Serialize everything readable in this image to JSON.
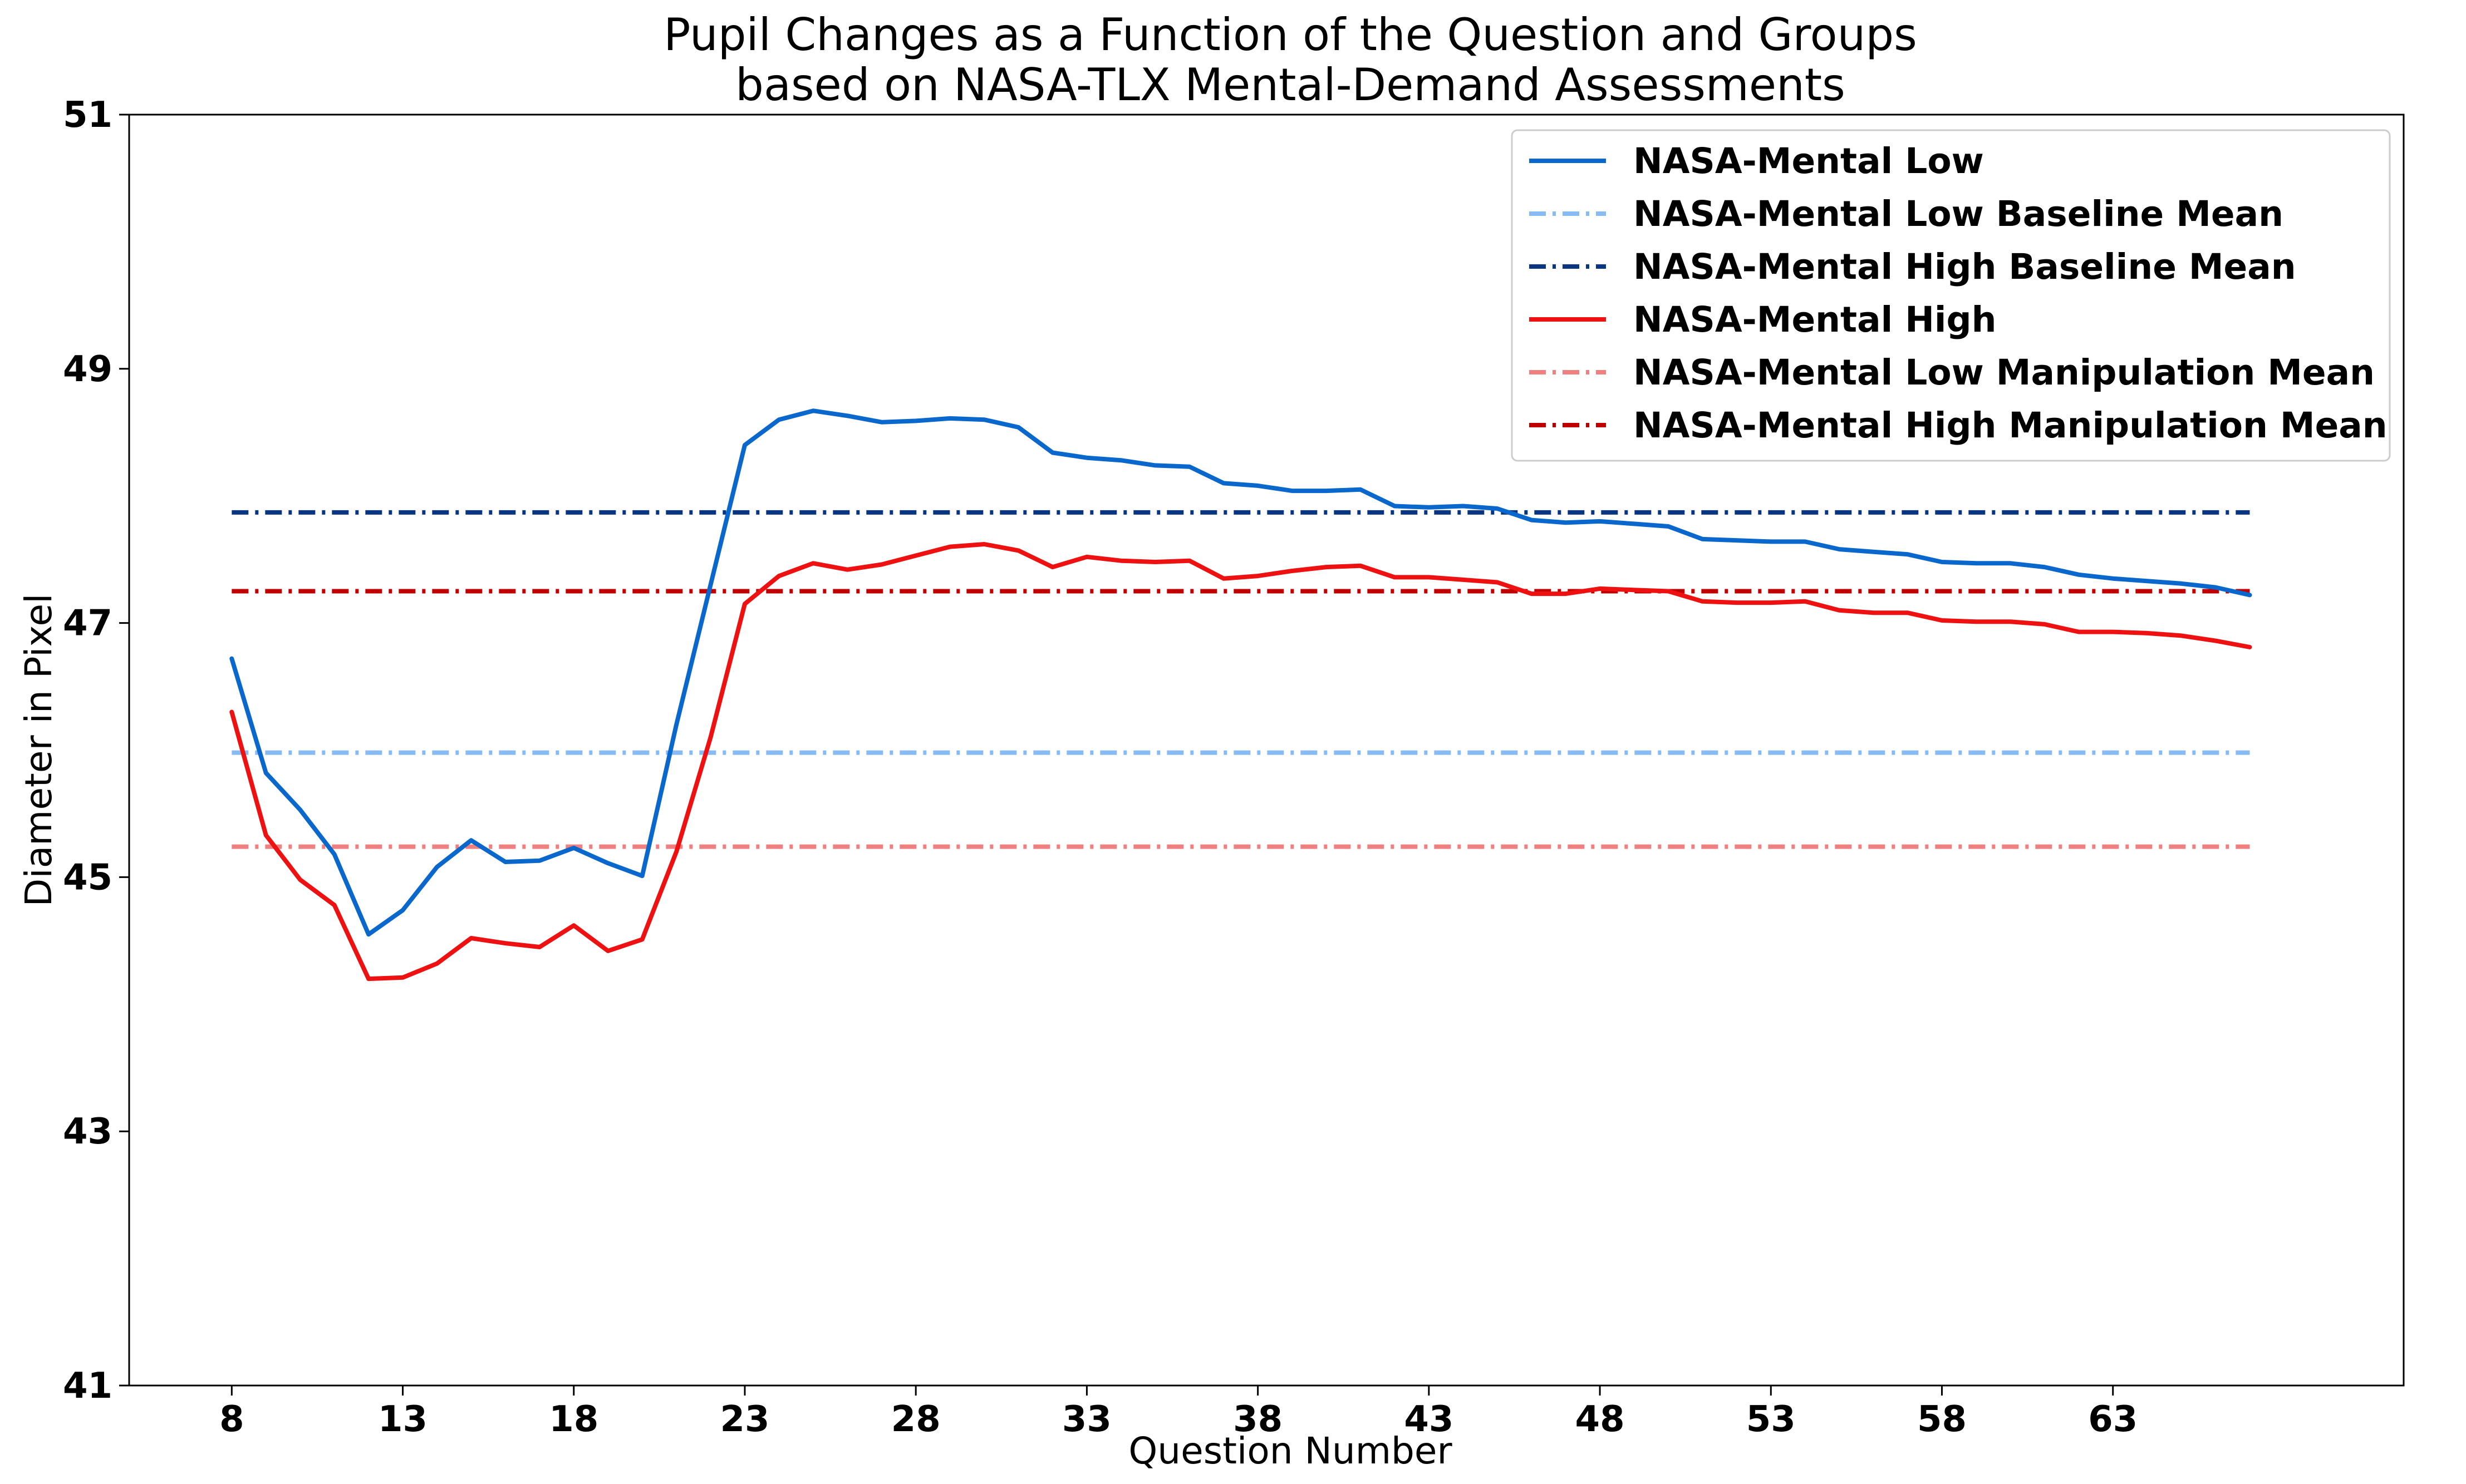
{
  "chart_data": {
    "type": "line",
    "title_lines": [
      "Pupil Changes as a Function of the Question and Groups",
      "based on NASA-TLX Mental-Demand Assessments"
    ],
    "xlabel": "Question Number",
    "ylabel": "Diameter in Pixel",
    "xlim": [
      5.0,
      71.5
    ],
    "ylim": [
      41,
      51
    ],
    "xticks": [
      8,
      13,
      18,
      23,
      28,
      33,
      38,
      43,
      48,
      53,
      58,
      63
    ],
    "yticks": [
      41,
      43,
      45,
      47,
      49,
      51
    ],
    "grid": false,
    "legend_position": "top-right",
    "x": [
      8,
      9,
      10,
      11,
      12,
      13,
      14,
      15,
      16,
      17,
      18,
      19,
      20,
      21,
      22,
      23,
      24,
      25,
      26,
      27,
      28,
      29,
      30,
      31,
      32,
      33,
      34,
      35,
      36,
      37,
      38,
      39,
      40,
      41,
      42,
      43,
      44,
      45,
      46,
      47,
      48,
      49,
      50,
      51,
      52,
      53,
      54,
      55,
      56,
      57,
      58,
      59,
      60,
      61,
      62,
      63,
      64,
      65,
      66,
      67
    ],
    "series": [
      {
        "name": "NASA-Mental Low",
        "kind": "line",
        "color": "#0a67cc",
        "dash": "solid",
        "values": [
          46.72,
          45.82,
          45.53,
          45.18,
          44.55,
          44.74,
          45.08,
          45.29,
          45.12,
          45.13,
          45.23,
          45.11,
          45.01,
          46.2,
          47.3,
          48.4,
          48.6,
          48.67,
          48.63,
          48.58,
          48.59,
          48.61,
          48.6,
          48.54,
          48.34,
          48.3,
          48.28,
          48.24,
          48.23,
          48.1,
          48.08,
          48.04,
          48.04,
          48.05,
          47.92,
          47.91,
          47.92,
          47.9,
          47.81,
          47.79,
          47.8,
          47.78,
          47.76,
          47.66,
          47.65,
          47.64,
          47.64,
          47.58,
          47.56,
          47.54,
          47.48,
          47.47,
          47.47,
          47.44,
          47.38,
          47.35,
          47.33,
          47.31,
          47.28,
          47.22
        ]
      },
      {
        "name": "NASA-Mental Low Baseline Mean",
        "kind": "hline",
        "color": "#88bbf2",
        "dash": "dashdot",
        "value": 45.98
      },
      {
        "name": "NASA-Mental High Baseline Mean",
        "kind": "hline",
        "color": "#0a3580",
        "dash": "dashdot",
        "value": 47.87
      },
      {
        "name": "NASA-Mental High",
        "kind": "line",
        "color": "#ee1111",
        "dash": "solid",
        "values": [
          46.3,
          45.33,
          44.98,
          44.78,
          44.2,
          44.21,
          44.32,
          44.52,
          44.48,
          44.45,
          44.62,
          44.42,
          44.51,
          45.2,
          46.1,
          47.15,
          47.37,
          47.47,
          47.42,
          47.46,
          47.53,
          47.6,
          47.62,
          47.57,
          47.44,
          47.52,
          47.49,
          47.48,
          47.49,
          47.35,
          47.37,
          47.41,
          47.44,
          47.45,
          47.36,
          47.36,
          47.34,
          47.32,
          47.23,
          47.23,
          47.27,
          47.26,
          47.25,
          47.17,
          47.16,
          47.16,
          47.17,
          47.1,
          47.08,
          47.08,
          47.02,
          47.01,
          47.01,
          46.99,
          46.93,
          46.93,
          46.92,
          46.9,
          46.86,
          46.81
        ]
      },
      {
        "name": "NASA-Mental Low Manipulation Mean",
        "kind": "hline",
        "color": "#f08080",
        "dash": "dashdot",
        "value": 45.24
      },
      {
        "name": "NASA-Mental High Manipulation Mean",
        "kind": "hline",
        "color": "#c00000",
        "dash": "dashdot",
        "value": 47.25
      }
    ]
  }
}
